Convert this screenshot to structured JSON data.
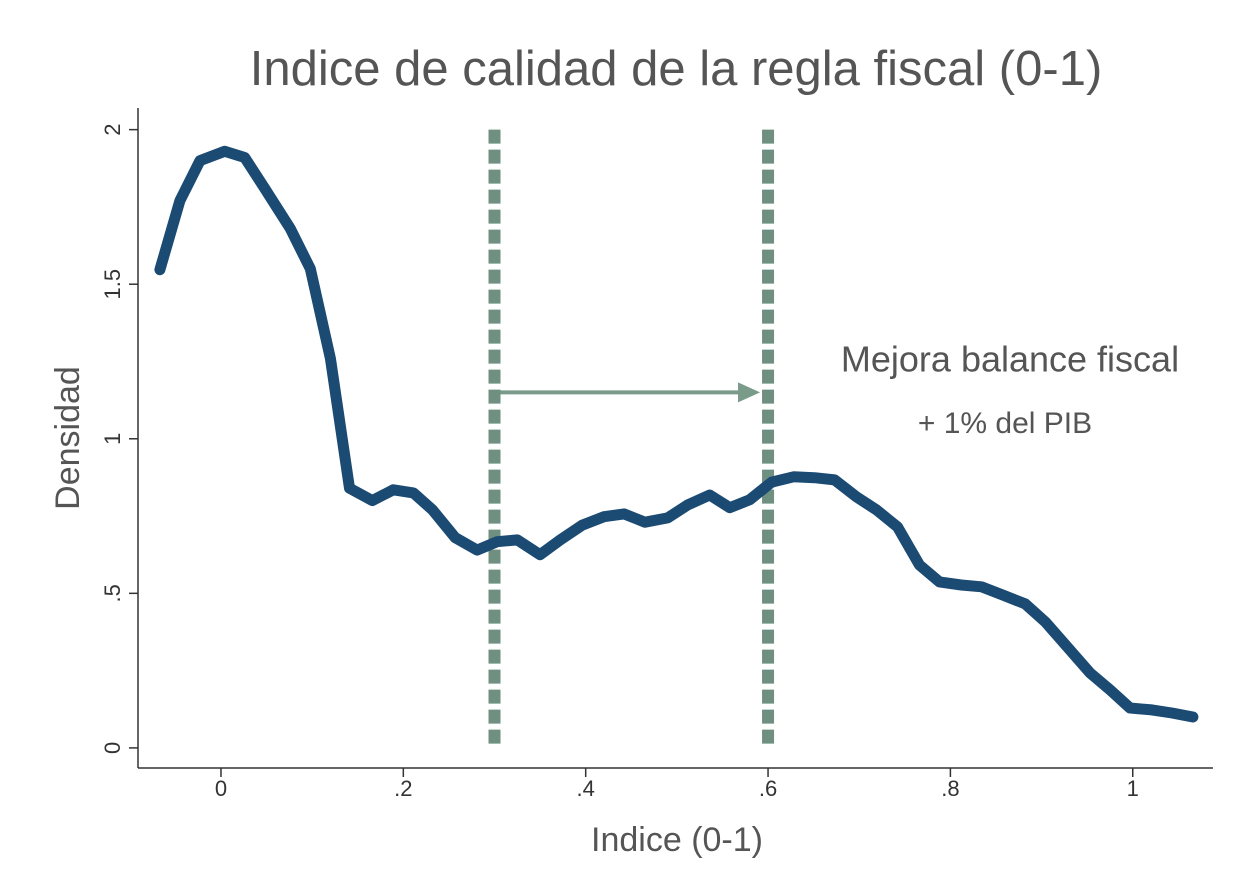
{
  "chart_data": {
    "type": "line",
    "title": "Indice de calidad de la regla fiscal (0-1)",
    "x_label": "Indice (0-1)",
    "y_label": "Densidad",
    "x": [
      -0.067,
      -0.045,
      -0.023,
      0.004,
      0.026,
      0.048,
      0.076,
      0.098,
      0.12,
      0.141,
      0.166,
      0.189,
      0.211,
      0.232,
      0.257,
      0.281,
      0.303,
      0.325,
      0.35,
      0.372,
      0.396,
      0.42,
      0.442,
      0.465,
      0.49,
      0.512,
      0.536,
      0.558,
      0.58,
      0.604,
      0.628,
      0.651,
      0.673,
      0.697,
      0.719,
      0.742,
      0.766,
      0.788,
      0.812,
      0.834,
      0.857,
      0.882,
      0.904,
      0.929,
      0.953,
      0.975,
      0.997,
      1.021,
      1.043,
      1.066
    ],
    "values": [
      1.547,
      1.77,
      1.9,
      1.93,
      1.91,
      1.81,
      1.68,
      1.55,
      1.26,
      0.84,
      0.8,
      0.835,
      0.825,
      0.77,
      0.68,
      0.64,
      0.667,
      0.673,
      0.625,
      0.673,
      0.72,
      0.748,
      0.757,
      0.73,
      0.744,
      0.786,
      0.818,
      0.777,
      0.803,
      0.86,
      0.877,
      0.874,
      0.867,
      0.812,
      0.77,
      0.715,
      0.592,
      0.537,
      0.527,
      0.521,
      0.495,
      0.466,
      0.408,
      0.324,
      0.243,
      0.188,
      0.129,
      0.123,
      0.113,
      0.1
    ],
    "color": "#1b4a72",
    "vlines": [
      0.3,
      0.6
    ],
    "vline_color": "#6f9080",
    "arrow": {
      "from": 0.3,
      "to": 0.6,
      "y": 1.15,
      "color": "#7a9a8a"
    },
    "annotations": [
      "Mejora balance fiscal",
      "+ 1% del PIB"
    ],
    "xlim": [
      -0.091,
      1.088
    ],
    "ylim": [
      -0.065,
      2.07
    ],
    "xticks": [
      0,
      {
        "value": 0.2,
        "label": ".2"
      },
      {
        "value": 0.4,
        "label": ".4"
      },
      {
        "value": 0.6,
        "label": ".6"
      },
      {
        "value": 0.8,
        "label": ".8"
      },
      1
    ],
    "yticks": [
      0,
      {
        "value": 0.5,
        "label": ".5"
      },
      1,
      1.5,
      2
    ],
    "grid": false
  }
}
